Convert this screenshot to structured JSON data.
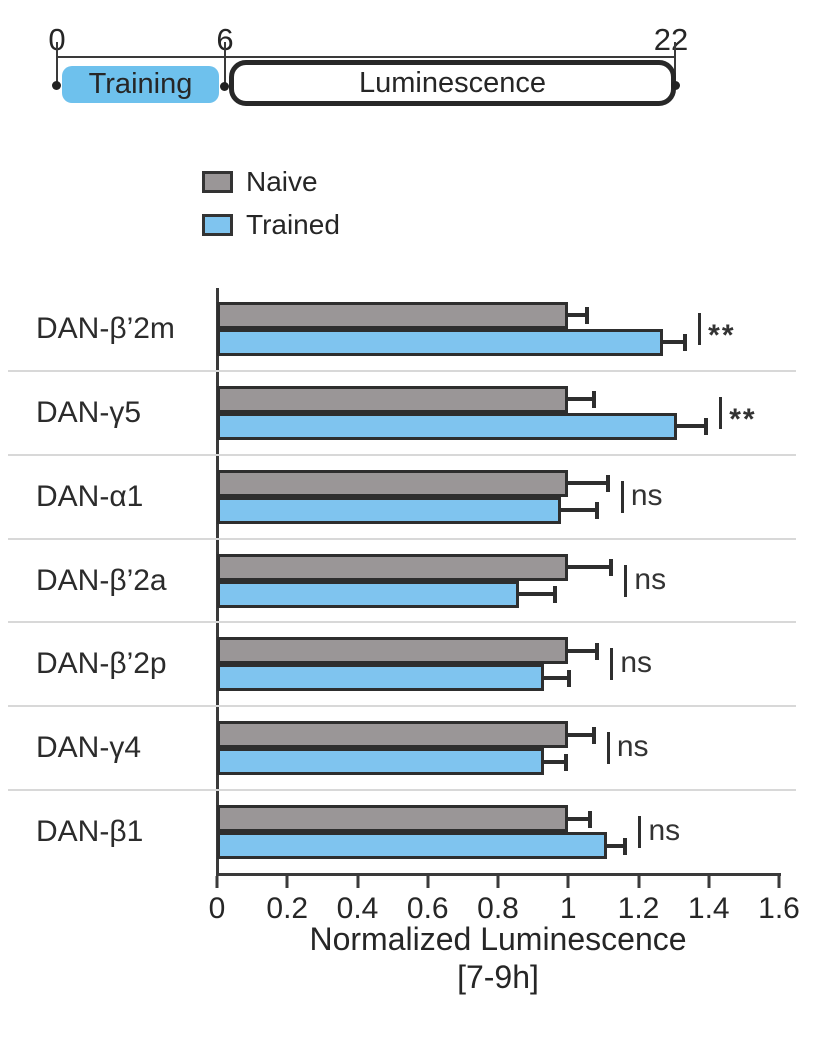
{
  "timeline": {
    "tick_labels": [
      "0",
      "6",
      "22"
    ],
    "training_label": "Training",
    "luminescence_label": "Luminescence",
    "training_color": "#6EC1ED"
  },
  "legend": {
    "items": [
      {
        "label": "Naive",
        "color": "#9A9697"
      },
      {
        "label": "Trained",
        "color": "#7FC4EF"
      }
    ]
  },
  "chart_data": {
    "type": "bar",
    "orientation": "horizontal",
    "title": "",
    "xlabel_line1": "Normalized Luminescence",
    "xlabel_line2": "[7-9h]",
    "xlim": [
      0,
      1.6
    ],
    "xticks": [
      0,
      0.2,
      0.4,
      0.6,
      0.8,
      1,
      1.2,
      1.4,
      1.6
    ],
    "xtick_labels": [
      "0",
      "0.2",
      "0.4",
      "0.6",
      "0.8",
      "1",
      "1.2",
      "1.4",
      "1.6"
    ],
    "categories": [
      "DAN-β’2m",
      "DAN-γ5",
      "DAN-α1",
      "DAN-β’2a",
      "DAN-β’2p",
      "DAN-γ4",
      "DAN-β1"
    ],
    "series": [
      {
        "name": "Naive",
        "color": "#9A9697",
        "values": [
          1.0,
          1.0,
          1.0,
          1.0,
          1.0,
          1.0,
          1.0
        ],
        "errors": [
          0.05,
          0.07,
          0.11,
          0.12,
          0.08,
          0.07,
          0.06
        ]
      },
      {
        "name": "Trained",
        "color": "#7FC4EF",
        "values": [
          1.27,
          1.31,
          0.98,
          0.86,
          0.93,
          0.93,
          1.11
        ],
        "errors": [
          0.06,
          0.08,
          0.1,
          0.1,
          0.07,
          0.06,
          0.05
        ]
      }
    ],
    "significance": [
      "**",
      "**",
      "ns",
      "ns",
      "ns",
      "ns",
      "ns"
    ],
    "grid": false,
    "legend_position": "top-left-above-plot"
  }
}
